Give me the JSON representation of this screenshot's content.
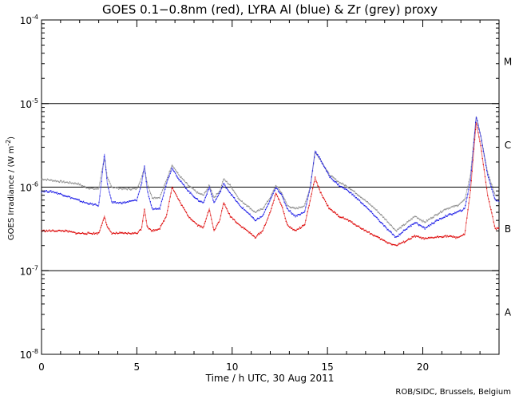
{
  "chart_data": {
    "type": "line",
    "title": "GOES 0.1−0.8nm (red), LYRA Al (blue) & Zr (grey) proxy",
    "xlabel": "Time / h UTC, 30 Aug 2011",
    "ylabel": "GOES Irradiance / (W m⁻²)",
    "ylabel_parts": {
      "main": "GOES Irradiance / (W m",
      "sup": "-2",
      "close": ")"
    },
    "xlim": [
      0,
      24
    ],
    "ylim_log10": [
      -8,
      -4
    ],
    "y_scale": "log",
    "x_ticks": [
      0,
      5,
      10,
      15,
      20
    ],
    "y_ticks": [
      {
        "base": "10",
        "exp": "-8"
      },
      {
        "base": "10",
        "exp": "-7"
      },
      {
        "base": "10",
        "exp": "-6"
      },
      {
        "base": "10",
        "exp": "-5"
      },
      {
        "base": "10",
        "exp": "-4"
      }
    ],
    "flare_thresholds_log10": [
      -7,
      -6,
      -5
    ],
    "flare_classes": [
      {
        "label": "A",
        "y_log10": -7.5
      },
      {
        "label": "B",
        "y_log10": -6.5
      },
      {
        "label": "C",
        "y_log10": -5.5
      },
      {
        "label": "M",
        "y_log10": -4.5
      }
    ],
    "series": [
      {
        "name": "LYRA Zr (grey) proxy",
        "color": "#8c8c8c",
        "points": [
          [
            0,
            1.25e-06
          ],
          [
            0.6,
            1.2e-06
          ],
          [
            1.2,
            1.15e-06
          ],
          [
            1.9,
            1.1e-06
          ],
          [
            2.3,
            1e-06
          ],
          [
            2.7,
            9.5e-07
          ],
          [
            3.0,
            9.5e-07
          ],
          [
            3.15,
            1.5e-06
          ],
          [
            3.3,
            2.2e-06
          ],
          [
            3.45,
            1.3e-06
          ],
          [
            3.7,
            1e-06
          ],
          [
            4.3,
            9.5e-07
          ],
          [
            5.0,
            9.5e-07
          ],
          [
            5.25,
            1.3e-06
          ],
          [
            5.4,
            1.7e-06
          ],
          [
            5.55,
            1.1e-06
          ],
          [
            5.8,
            7.5e-07
          ],
          [
            6.2,
            7.5e-07
          ],
          [
            6.55,
            1.2e-06
          ],
          [
            6.85,
            1.85e-06
          ],
          [
            7.2,
            1.4e-06
          ],
          [
            7.7,
            1.05e-06
          ],
          [
            8.2,
            8.5e-07
          ],
          [
            8.5,
            8e-07
          ],
          [
            8.8,
            1.05e-06
          ],
          [
            9.05,
            7.5e-07
          ],
          [
            9.35,
            9e-07
          ],
          [
            9.55,
            1.25e-06
          ],
          [
            9.9,
            1.05e-06
          ],
          [
            10.4,
            7e-07
          ],
          [
            10.8,
            6e-07
          ],
          [
            11.2,
            5e-07
          ],
          [
            11.6,
            5.5e-07
          ],
          [
            12.0,
            7.5e-07
          ],
          [
            12.3,
            1.05e-06
          ],
          [
            12.6,
            8.5e-07
          ],
          [
            12.9,
            6e-07
          ],
          [
            13.3,
            5.5e-07
          ],
          [
            13.8,
            6e-07
          ],
          [
            14.1,
            1e-06
          ],
          [
            14.35,
            2.6e-06
          ],
          [
            14.6,
            2.2e-06
          ],
          [
            15.1,
            1.4e-06
          ],
          [
            15.6,
            1.15e-06
          ],
          [
            16.1,
            1e-06
          ],
          [
            16.8,
            7.5e-07
          ],
          [
            17.5,
            5.5e-07
          ],
          [
            18.1,
            4e-07
          ],
          [
            18.6,
            3e-07
          ],
          [
            19.0,
            3.5e-07
          ],
          [
            19.6,
            4.5e-07
          ],
          [
            20.1,
            3.8e-07
          ],
          [
            20.6,
            4.5e-07
          ],
          [
            21.2,
            5.5e-07
          ],
          [
            21.8,
            6e-07
          ],
          [
            22.2,
            7e-07
          ],
          [
            22.5,
            1.4e-06
          ],
          [
            22.8,
            7e-06
          ],
          [
            23.05,
            4e-06
          ],
          [
            23.4,
            1.5e-06
          ],
          [
            23.8,
            8e-07
          ],
          [
            24,
            8e-07
          ]
        ]
      },
      {
        "name": "LYRA Al (blue) proxy",
        "color": "#1a1ae6",
        "points": [
          [
            0,
            9e-07
          ],
          [
            0.6,
            8.8e-07
          ],
          [
            1.2,
            8e-07
          ],
          [
            1.9,
            7e-07
          ],
          [
            2.3,
            6.5e-07
          ],
          [
            3.0,
            6e-07
          ],
          [
            3.15,
            1.2e-06
          ],
          [
            3.3,
            2.5e-06
          ],
          [
            3.45,
            1.1e-06
          ],
          [
            3.7,
            6.5e-07
          ],
          [
            4.3,
            6.5e-07
          ],
          [
            5.0,
            7e-07
          ],
          [
            5.25,
            1.1e-06
          ],
          [
            5.4,
            1.8e-06
          ],
          [
            5.55,
            9e-07
          ],
          [
            5.8,
            5.5e-07
          ],
          [
            6.2,
            5.5e-07
          ],
          [
            6.55,
            1.1e-06
          ],
          [
            6.85,
            1.7e-06
          ],
          [
            7.2,
            1.25e-06
          ],
          [
            7.7,
            9e-07
          ],
          [
            8.2,
            7e-07
          ],
          [
            8.5,
            6.5e-07
          ],
          [
            8.8,
            1e-06
          ],
          [
            9.05,
            6.5e-07
          ],
          [
            9.35,
            8.5e-07
          ],
          [
            9.55,
            1.1e-06
          ],
          [
            9.9,
            8.5e-07
          ],
          [
            10.4,
            6e-07
          ],
          [
            10.8,
            5e-07
          ],
          [
            11.2,
            4e-07
          ],
          [
            11.6,
            4.5e-07
          ],
          [
            12.0,
            7e-07
          ],
          [
            12.3,
            1e-06
          ],
          [
            12.6,
            8e-07
          ],
          [
            12.9,
            5.5e-07
          ],
          [
            13.3,
            4.5e-07
          ],
          [
            13.8,
            5e-07
          ],
          [
            14.1,
            1e-06
          ],
          [
            14.35,
            2.7e-06
          ],
          [
            14.6,
            2.2e-06
          ],
          [
            15.1,
            1.35e-06
          ],
          [
            15.6,
            1.05e-06
          ],
          [
            16.1,
            9e-07
          ],
          [
            16.8,
            6.5e-07
          ],
          [
            17.5,
            4.5e-07
          ],
          [
            18.1,
            3.2e-07
          ],
          [
            18.6,
            2.5e-07
          ],
          [
            19.0,
            3e-07
          ],
          [
            19.6,
            3.8e-07
          ],
          [
            20.1,
            3.2e-07
          ],
          [
            20.6,
            3.8e-07
          ],
          [
            21.2,
            4.5e-07
          ],
          [
            21.8,
            5e-07
          ],
          [
            22.2,
            5.5e-07
          ],
          [
            22.5,
            1.2e-06
          ],
          [
            22.8,
            7e-06
          ],
          [
            23.05,
            4e-06
          ],
          [
            23.4,
            1.4e-06
          ],
          [
            23.8,
            7e-07
          ],
          [
            24,
            7e-07
          ]
        ]
      },
      {
        "name": "GOES 0.1-0.8nm (red)",
        "color": "#dd0000",
        "points": [
          [
            0,
            3e-07
          ],
          [
            0.6,
            3e-07
          ],
          [
            1.2,
            3e-07
          ],
          [
            1.9,
            2.8e-07
          ],
          [
            2.3,
            2.8e-07
          ],
          [
            3.0,
            2.8e-07
          ],
          [
            3.15,
            3.5e-07
          ],
          [
            3.3,
            4.5e-07
          ],
          [
            3.45,
            3.3e-07
          ],
          [
            3.7,
            2.8e-07
          ],
          [
            4.3,
            2.8e-07
          ],
          [
            5.0,
            2.8e-07
          ],
          [
            5.25,
            3.2e-07
          ],
          [
            5.4,
            5.5e-07
          ],
          [
            5.55,
            3.3e-07
          ],
          [
            5.8,
            3e-07
          ],
          [
            6.2,
            3.2e-07
          ],
          [
            6.55,
            4.5e-07
          ],
          [
            6.85,
            1e-06
          ],
          [
            7.2,
            7e-07
          ],
          [
            7.7,
            4.5e-07
          ],
          [
            8.2,
            3.5e-07
          ],
          [
            8.5,
            3.3e-07
          ],
          [
            8.8,
            5.5e-07
          ],
          [
            9.05,
            3e-07
          ],
          [
            9.35,
            4e-07
          ],
          [
            9.55,
            6.5e-07
          ],
          [
            9.9,
            4.5e-07
          ],
          [
            10.4,
            3.5e-07
          ],
          [
            10.8,
            3e-07
          ],
          [
            11.2,
            2.5e-07
          ],
          [
            11.6,
            3e-07
          ],
          [
            12.0,
            5e-07
          ],
          [
            12.3,
            8.5e-07
          ],
          [
            12.6,
            6e-07
          ],
          [
            12.9,
            3.5e-07
          ],
          [
            13.3,
            3e-07
          ],
          [
            13.8,
            3.5e-07
          ],
          [
            14.1,
            7e-07
          ],
          [
            14.35,
            1.3e-06
          ],
          [
            14.6,
            9e-07
          ],
          [
            15.1,
            5.5e-07
          ],
          [
            15.6,
            4.5e-07
          ],
          [
            16.1,
            4e-07
          ],
          [
            16.8,
            3.2e-07
          ],
          [
            17.5,
            2.6e-07
          ],
          [
            18.1,
            2.2e-07
          ],
          [
            18.6,
            2e-07
          ],
          [
            19.0,
            2.2e-07
          ],
          [
            19.6,
            2.6e-07
          ],
          [
            20.1,
            2.4e-07
          ],
          [
            20.6,
            2.5e-07
          ],
          [
            21.2,
            2.6e-07
          ],
          [
            21.8,
            2.5e-07
          ],
          [
            22.2,
            2.7e-07
          ],
          [
            22.5,
            9e-07
          ],
          [
            22.8,
            6e-06
          ],
          [
            23.05,
            3e-06
          ],
          [
            23.4,
            8e-07
          ],
          [
            23.8,
            3.2e-07
          ],
          [
            24,
            3.2e-07
          ]
        ]
      }
    ]
  },
  "credit": "ROB/SIDC, Brussels, Belgium"
}
